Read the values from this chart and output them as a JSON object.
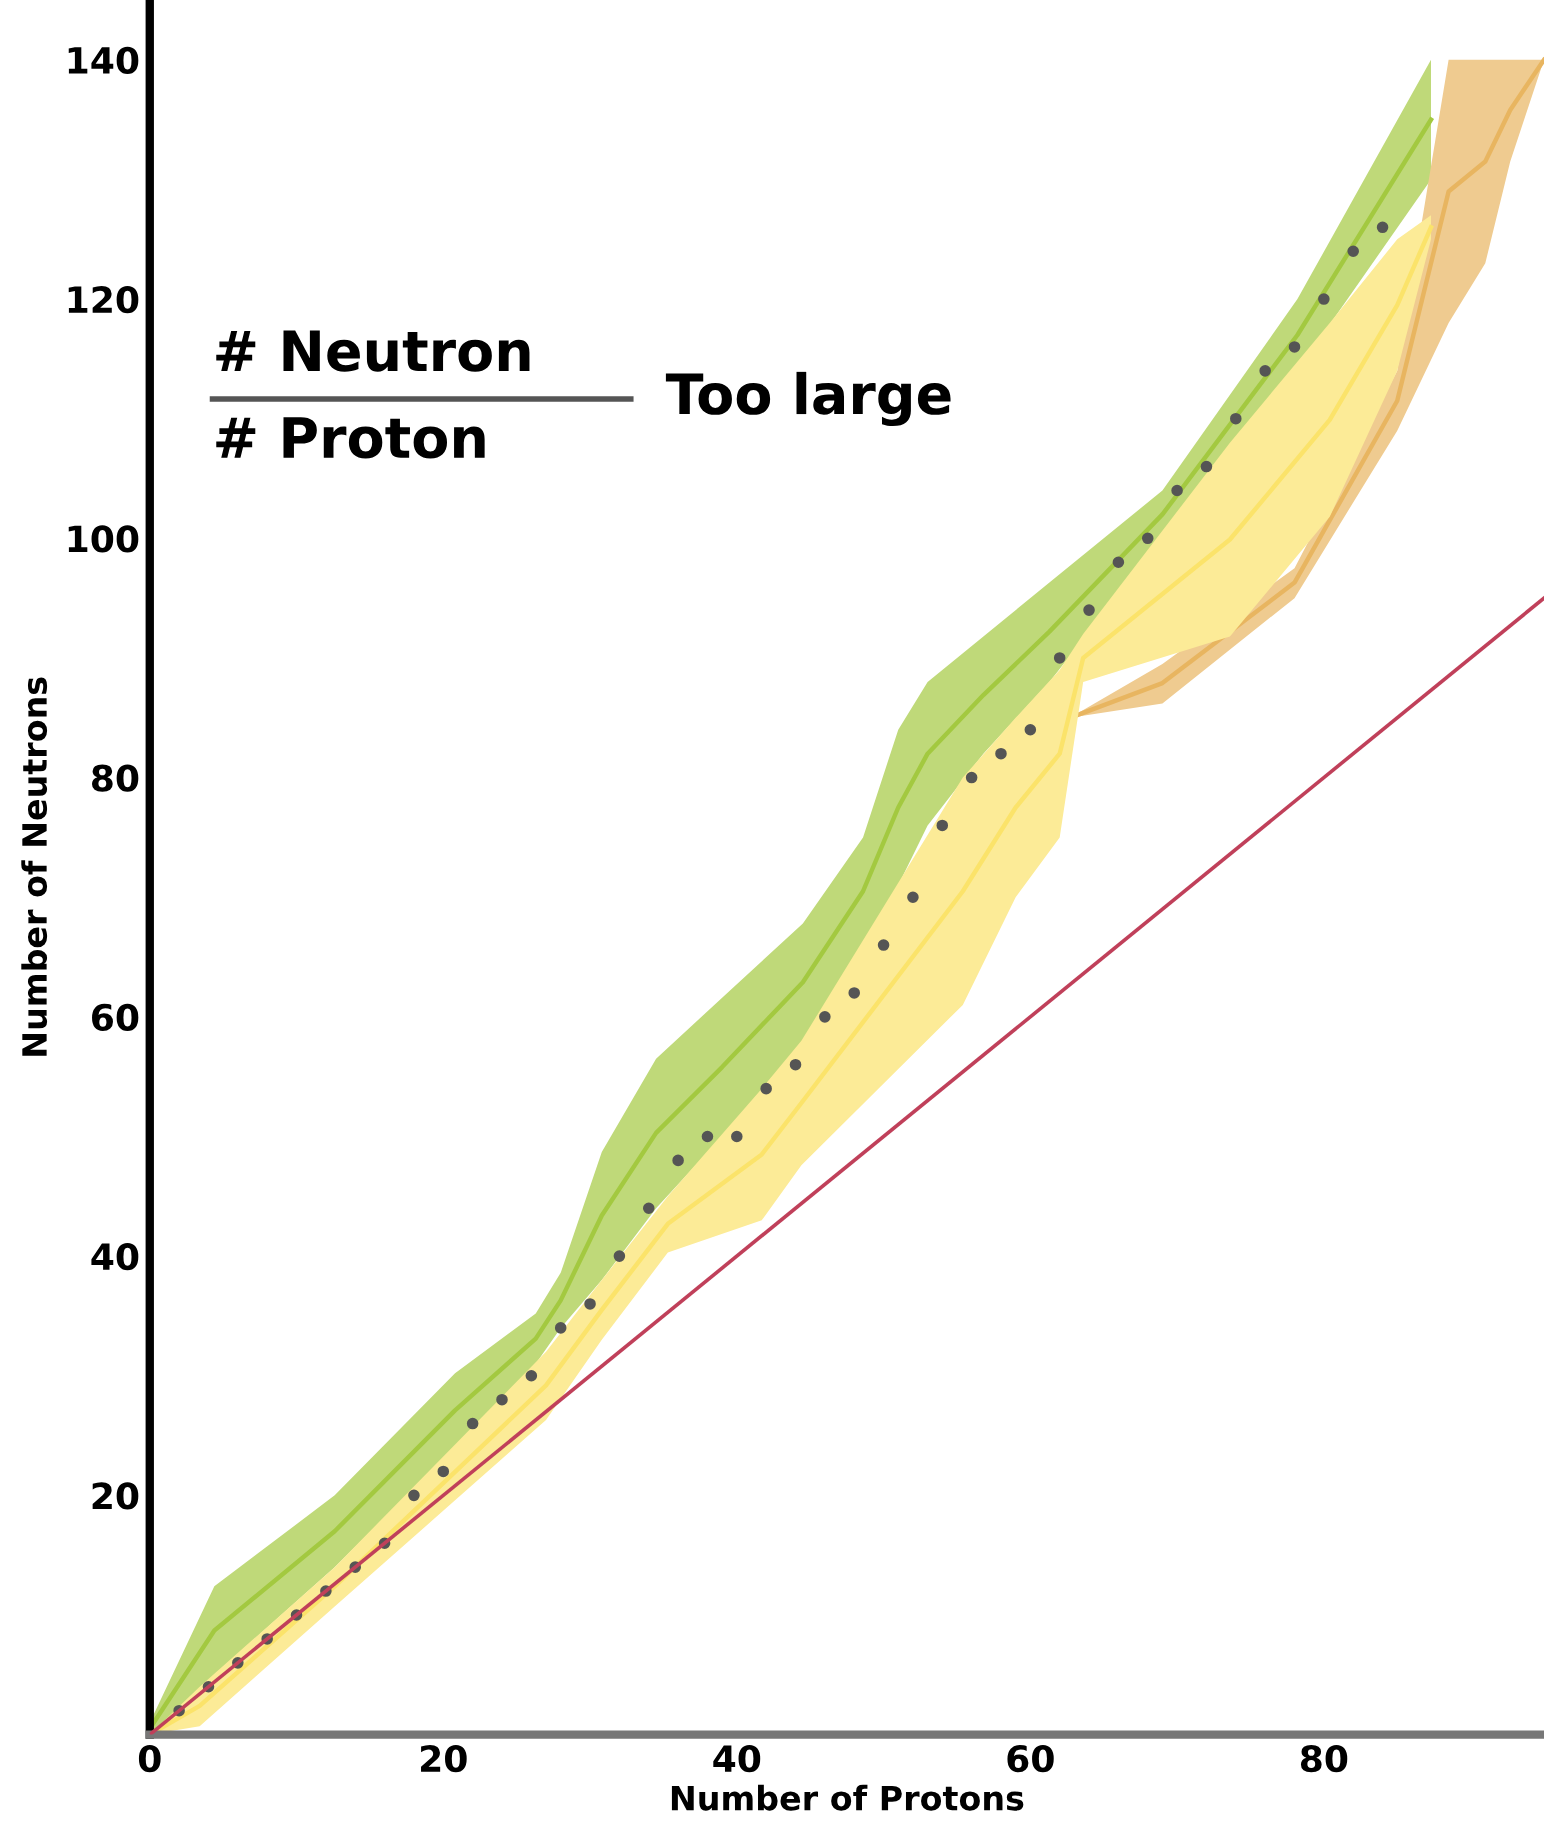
{
  "chart_data": {
    "type": "line",
    "xlabel": "Number of Protons",
    "ylabel": "Number of Neutrons",
    "annotations": [
      "# Neutron",
      "# Proton",
      "Too large"
    ],
    "xlim": [
      0,
      95
    ],
    "ylim": [
      0,
      145
    ],
    "xticks": [
      0,
      20,
      40,
      60,
      80
    ],
    "yticks": [
      20,
      40,
      60,
      80,
      100,
      120,
      140
    ],
    "grid": false,
    "series": [
      {
        "color": "#a3c940",
        "x": [
          0,
          4.4,
          12.6,
          20.8,
          26.3,
          28,
          30.8,
          34.5,
          39,
          44.5,
          48.6,
          51,
          53,
          56.8,
          61.3,
          69,
          78.2,
          87.3
        ],
        "values": [
          0.5,
          8.7,
          17,
          27.1,
          33.1,
          36.3,
          43.4,
          50.3,
          55.8,
          62.9,
          70.5,
          77.5,
          82,
          86.9,
          92.2,
          102,
          117,
          135
        ],
        "lower": [
          0,
          5,
          14,
          24,
          31,
          34,
          38,
          44,
          50,
          58,
          66,
          71,
          76,
          82,
          88,
          100,
          114,
          130
        ],
        "upper": [
          1,
          12.4,
          20,
          30.2,
          35.2,
          38.6,
          48.7,
          56.5,
          61.6,
          67.8,
          75,
          84,
          88,
          91.8,
          96.3,
          104,
          120,
          140
        ]
      },
      {
        "color": "#e8b560",
        "x": [
          62.7,
          69,
          78,
          85,
          88.5,
          91,
          92.7,
          95
        ],
        "values": [
          85,
          87.9,
          96.3,
          111.5,
          129,
          131.5,
          135.8,
          140
        ],
        "lower": [
          85,
          86.2,
          95,
          109,
          118,
          123,
          131.5,
          140
        ],
        "upper": [
          85,
          89.5,
          97.5,
          114,
          140,
          140,
          140,
          140
        ]
      },
      {
        "color": "#fbe36a",
        "x": [
          0,
          3.4,
          12.6,
          19.8,
          27,
          30.8,
          35.3,
          41.7,
          44.4,
          55.4,
          59,
          62,
          63.6,
          73.6,
          80.4,
          85,
          87.3
        ],
        "values": [
          0,
          2.4,
          12.4,
          20.8,
          29.2,
          35.5,
          42.7,
          48.5,
          52.8,
          70.5,
          77.5,
          82,
          90,
          99.9,
          109.9,
          119.5,
          126
        ],
        "lower": [
          0,
          0.7,
          10.7,
          18.5,
          26.3,
          33,
          40.3,
          43,
          47.6,
          61,
          70,
          75,
          88,
          91.8,
          101.8,
          114,
          125
        ],
        "upper": [
          0,
          4,
          14,
          23,
          32,
          38,
          45,
          54,
          58,
          80,
          85,
          89,
          92,
          108,
          118,
          125,
          127
        ]
      },
      {
        "type": "scatter",
        "color": "#555555",
        "marker": "circle",
        "x": [
          2,
          4,
          6,
          8,
          10,
          12,
          14,
          16,
          18,
          20,
          22,
          24,
          26,
          28,
          30,
          32,
          34,
          36,
          38,
          40,
          42,
          44,
          46,
          48,
          50,
          52,
          54,
          56,
          58,
          60,
          62,
          64,
          66,
          68,
          70,
          72,
          74,
          76,
          78,
          80,
          82,
          84
        ],
        "values": [
          2,
          4,
          6,
          8,
          10,
          12,
          14,
          16,
          20,
          22,
          26,
          28,
          30,
          34,
          36,
          40,
          44,
          48,
          50,
          50,
          54,
          56,
          60,
          62,
          66,
          70,
          76,
          80,
          82,
          84,
          90,
          94,
          98,
          100,
          104,
          106,
          110,
          114,
          116,
          120,
          124,
          126
        ]
      },
      {
        "color": "#c0405a",
        "line_style": "solid",
        "x": [
          0,
          95
        ],
        "values": [
          0,
          95
        ]
      }
    ]
  }
}
